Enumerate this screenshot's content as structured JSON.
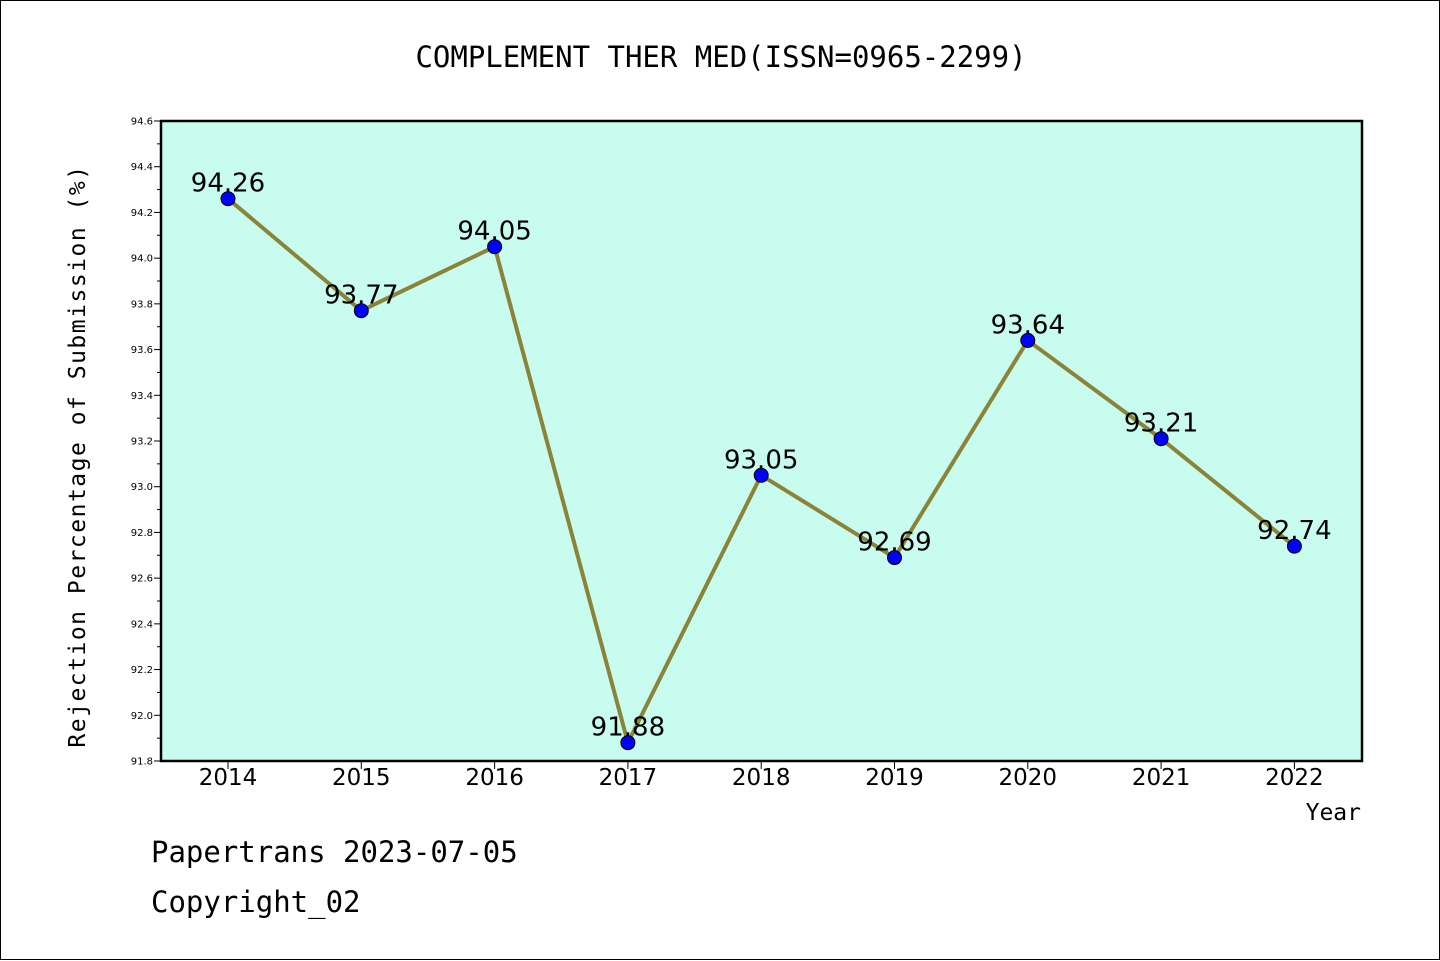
{
  "chart_data": {
    "type": "line",
    "title": "COMPLEMENT THER MED(ISSN=0965-2299)",
    "xlabel": "Year",
    "ylabel": "Rejection Percentage of Submission (%)",
    "categories": [
      "2014",
      "2015",
      "2016",
      "2017",
      "2018",
      "2019",
      "2020",
      "2021",
      "2022"
    ],
    "values": [
      94.26,
      93.77,
      94.05,
      91.88,
      93.05,
      92.69,
      93.64,
      93.21,
      92.74
    ],
    "data_labels": [
      "94.26",
      "93.77",
      "94.05",
      "91.88",
      "93.05",
      "92.69",
      "93.64",
      "93.21",
      "92.74"
    ],
    "ylim": [
      91.8,
      94.6
    ],
    "yticks": [
      "91.8",
      "92.0",
      "92.2",
      "92.4",
      "92.6",
      "92.8",
      "93.0",
      "93.2",
      "93.4",
      "93.6",
      "93.8",
      "94.0",
      "94.2",
      "94.4",
      "94.6"
    ],
    "grid": false,
    "colors": {
      "plot_background": "#c8fcee",
      "line": "#8b8438",
      "marker": "#0000ff"
    }
  },
  "footer": {
    "source": "Papertrans 2023-07-05",
    "copyright": "Copyright_02"
  }
}
